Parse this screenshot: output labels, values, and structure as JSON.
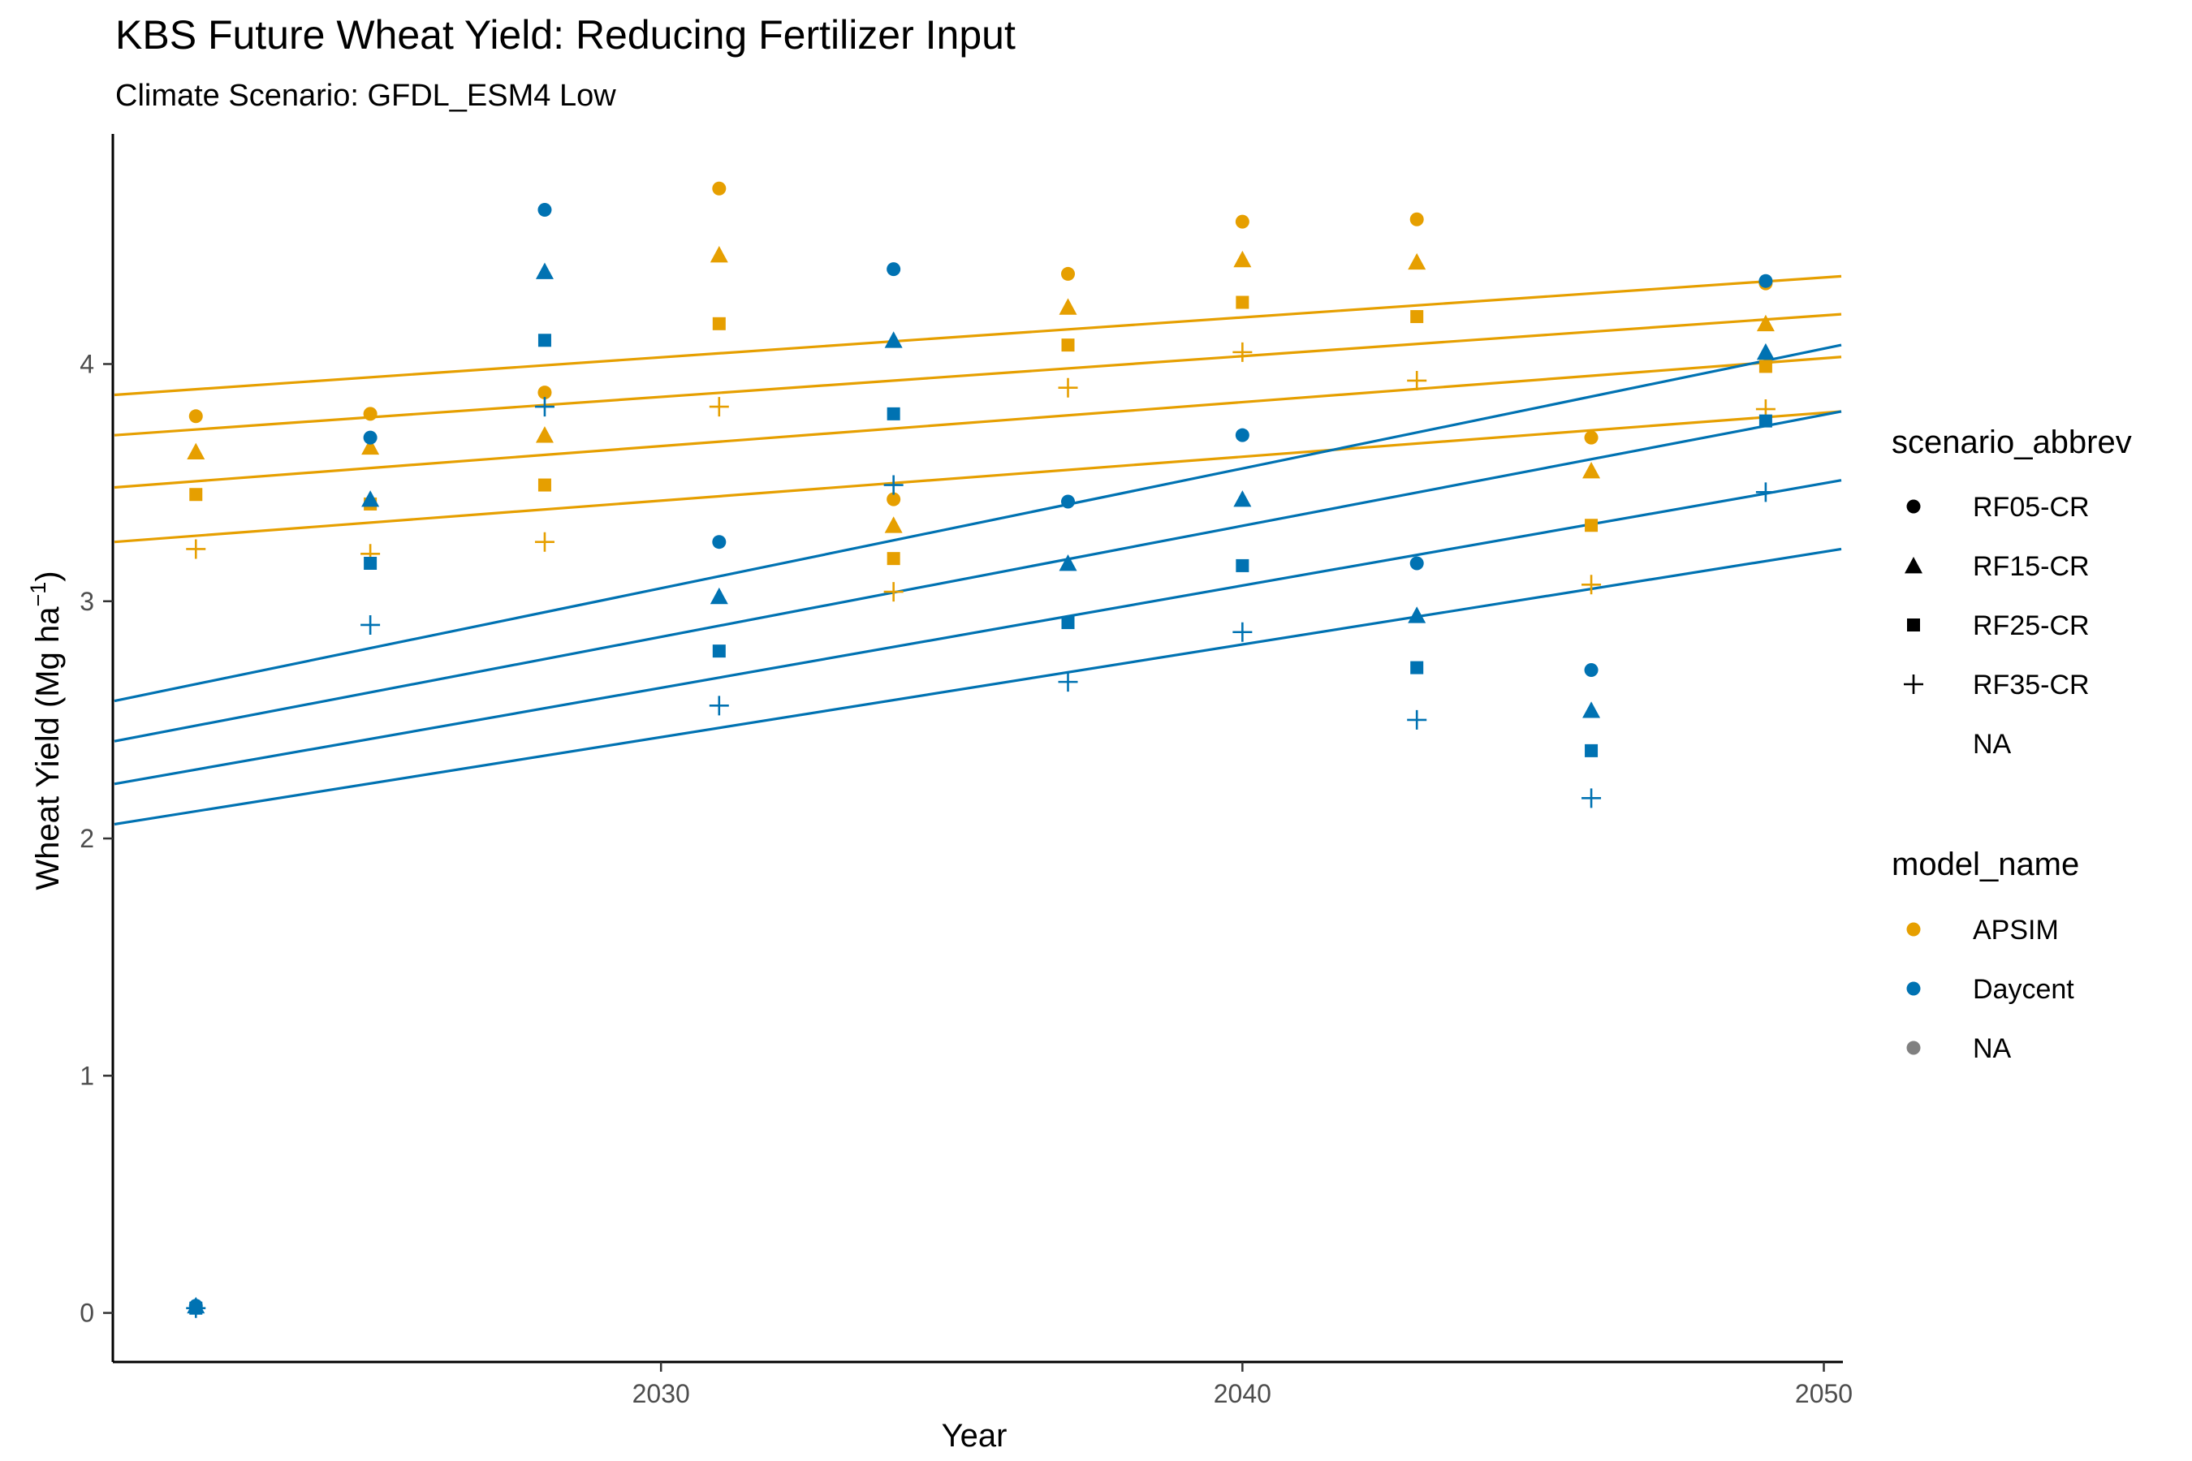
{
  "chart_data": {
    "type": "scatter",
    "title": "KBS Future Wheat Yield: Reducing Fertilizer Input",
    "subtitle": "Climate Scenario: GFDL_ESM4 Low",
    "xlabel": "Year",
    "ylabel_main": "Wheat Yield (Mg ha",
    "ylabel_sup": "−1",
    "ylabel_close": ")",
    "xlim": [
      2020.6,
      2050.3
    ],
    "ylim": [
      -0.2,
      4.97
    ],
    "xticks": [
      2030,
      2040,
      2050
    ],
    "yticks": [
      0,
      1,
      2,
      3,
      4
    ],
    "grid": false,
    "colors": {
      "APSIM": "#E69F00",
      "Daycent": "#0072B2",
      "NA": "#808080"
    },
    "shapes": {
      "RF05-CR": "circle",
      "RF15-CR": "triangle",
      "RF25-CR": "square",
      "RF35-CR": "plus",
      "NA": "none"
    },
    "legend_scenario": {
      "title": "scenario_abbrev",
      "items": [
        {
          "label": "RF05-CR",
          "shape": "circle"
        },
        {
          "label": "RF15-CR",
          "shape": "triangle"
        },
        {
          "label": "RF25-CR",
          "shape": "square"
        },
        {
          "label": "RF35-CR",
          "shape": "plus"
        },
        {
          "label": "NA",
          "shape": "none"
        }
      ]
    },
    "legend_model": {
      "title": "model_name",
      "items": [
        {
          "label": "APSIM",
          "color": "#E69F00"
        },
        {
          "label": "Daycent",
          "color": "#0072B2"
        },
        {
          "label": "NA",
          "color": "#808080"
        }
      ]
    },
    "x": [
      2022,
      2025,
      2028,
      2031,
      2034,
      2037,
      2040,
      2043,
      2046,
      2049
    ],
    "series": [
      {
        "model": "APSIM",
        "scenario": "RF05-CR",
        "y": [
          3.78,
          3.79,
          3.88,
          4.74,
          3.43,
          4.38,
          4.6,
          4.61,
          3.69,
          4.34
        ],
        "trend": [
          3.87,
          4.37
        ]
      },
      {
        "model": "APSIM",
        "scenario": "RF15-CR",
        "y": [
          3.63,
          3.65,
          3.7,
          4.46,
          3.32,
          4.24,
          4.44,
          4.43,
          3.55,
          4.17
        ],
        "trend": [
          3.7,
          4.21
        ]
      },
      {
        "model": "APSIM",
        "scenario": "RF25-CR",
        "y": [
          3.45,
          3.41,
          3.49,
          4.17,
          3.18,
          4.08,
          4.26,
          4.2,
          3.32,
          3.99
        ],
        "trend": [
          3.48,
          4.03
        ]
      },
      {
        "model": "APSIM",
        "scenario": "RF35-CR",
        "y": [
          3.22,
          3.2,
          3.25,
          3.82,
          3.04,
          3.9,
          4.05,
          3.93,
          3.07,
          3.81
        ],
        "trend": [
          3.25,
          3.8
        ]
      },
      {
        "model": "Daycent",
        "scenario": "RF05-CR",
        "y": [
          0.03,
          3.69,
          4.65,
          3.25,
          4.4,
          3.42,
          3.7,
          3.16,
          2.71,
          4.35
        ],
        "trend": [
          2.58,
          4.08
        ]
      },
      {
        "model": "Daycent",
        "scenario": "RF15-CR",
        "y": [
          0.03,
          3.43,
          4.39,
          3.02,
          4.1,
          3.16,
          3.43,
          2.94,
          2.54,
          4.05
        ],
        "trend": [
          2.41,
          3.8
        ]
      },
      {
        "model": "Daycent",
        "scenario": "RF25-CR",
        "y": [
          0.02,
          3.16,
          4.1,
          2.79,
          3.79,
          2.91,
          3.15,
          2.72,
          2.37,
          3.76
        ],
        "trend": [
          2.23,
          3.51
        ]
      },
      {
        "model": "Daycent",
        "scenario": "RF35-CR",
        "y": [
          0.02,
          2.9,
          3.82,
          2.56,
          3.49,
          2.66,
          2.87,
          2.5,
          2.17,
          3.46
        ],
        "trend": [
          2.06,
          3.22
        ]
      }
    ]
  }
}
